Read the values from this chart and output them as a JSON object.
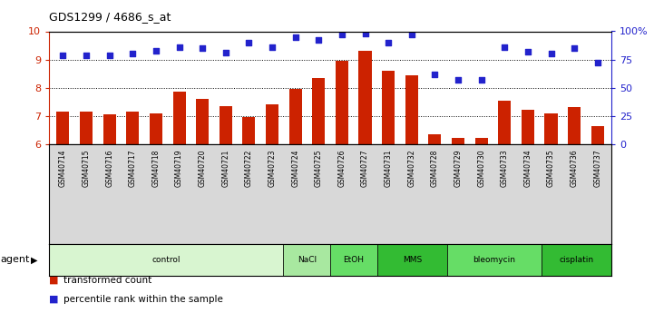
{
  "title": "GDS1299 / 4686_s_at",
  "samples": [
    "GSM40714",
    "GSM40715",
    "GSM40716",
    "GSM40717",
    "GSM40718",
    "GSM40719",
    "GSM40720",
    "GSM40721",
    "GSM40722",
    "GSM40723",
    "GSM40724",
    "GSM40725",
    "GSM40726",
    "GSM40727",
    "GSM40731",
    "GSM40732",
    "GSM40728",
    "GSM40729",
    "GSM40730",
    "GSM40733",
    "GSM40734",
    "GSM40735",
    "GSM40736",
    "GSM40737"
  ],
  "transformed_count": [
    7.15,
    7.15,
    7.05,
    7.15,
    7.1,
    7.85,
    7.6,
    7.35,
    6.95,
    7.4,
    7.95,
    8.35,
    8.95,
    9.3,
    8.6,
    8.45,
    6.35,
    6.2,
    6.2,
    7.55,
    7.2,
    7.1,
    7.3,
    6.65
  ],
  "percentile_rank": [
    79,
    79,
    79,
    80,
    83,
    86,
    85,
    81,
    90,
    86,
    95,
    92,
    97,
    98,
    90,
    97,
    62,
    57,
    57,
    86,
    82,
    80,
    85,
    72
  ],
  "agents": [
    {
      "label": "control",
      "start": 0,
      "end": 10
    },
    {
      "label": "NaCl",
      "start": 10,
      "end": 12
    },
    {
      "label": "EtOH",
      "start": 12,
      "end": 14
    },
    {
      "label": "MMS",
      "start": 14,
      "end": 17
    },
    {
      "label": "bleomycin",
      "start": 17,
      "end": 21
    },
    {
      "label": "cisplatin",
      "start": 21,
      "end": 24
    }
  ],
  "agent_colors": [
    "#d8f5d0",
    "#a8e8a0",
    "#66dd66",
    "#33bb33",
    "#66dd66",
    "#33bb33"
  ],
  "ylim_left": [
    6,
    10
  ],
  "ylim_right": [
    0,
    100
  ],
  "yticks_left": [
    6,
    7,
    8,
    9,
    10
  ],
  "yticks_right": [
    0,
    25,
    50,
    75,
    100
  ],
  "bar_color": "#cc2200",
  "dot_color": "#2222cc",
  "label_bg_color": "#d8d8d8",
  "chart_bg_color": "#ffffff"
}
